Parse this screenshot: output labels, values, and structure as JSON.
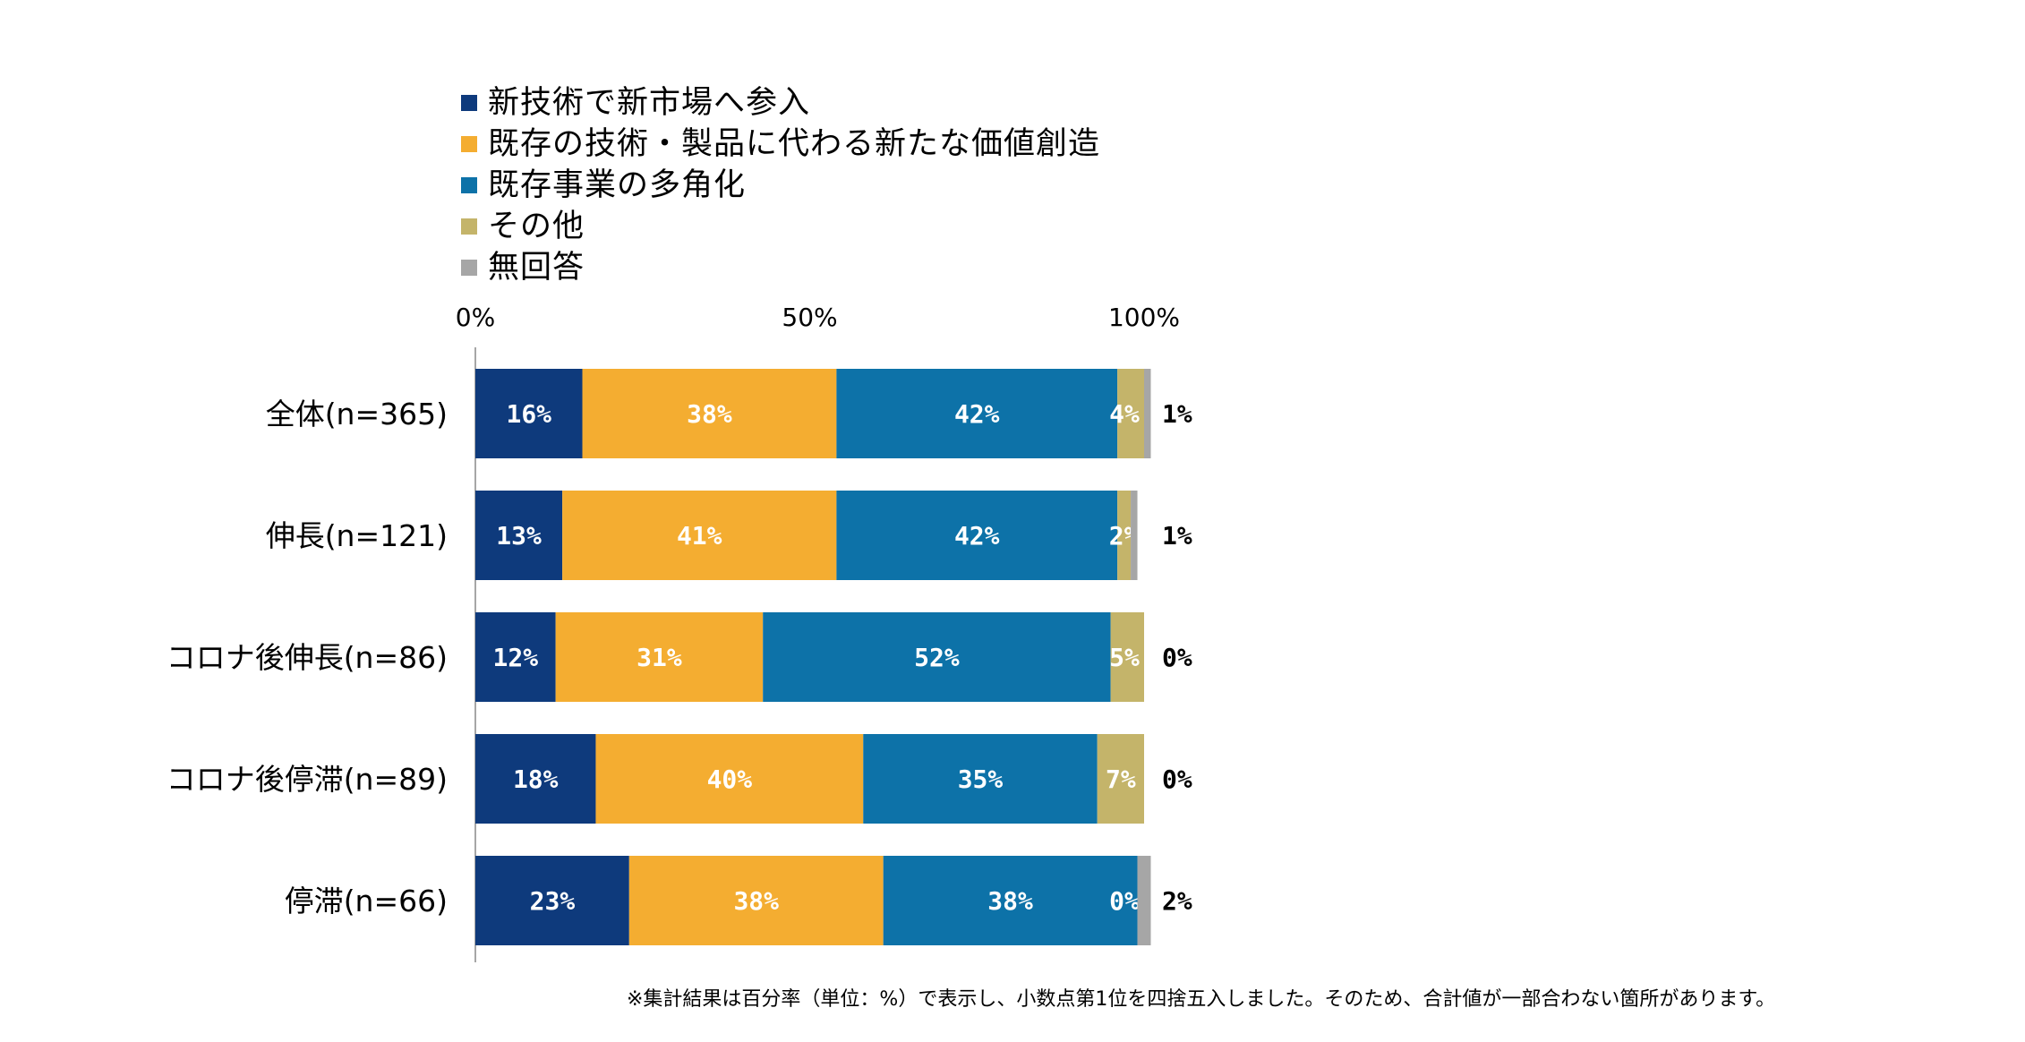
{
  "chart_data": {
    "type": "bar",
    "orientation": "horizontal",
    "stacked": true,
    "normalized": true,
    "categories": [
      "全体(n=365)",
      "伸長(n=121)",
      "コロナ後伸長(n=86)",
      "コロナ後停滞(n=89)",
      "停滞(n=66)"
    ],
    "series": [
      {
        "name": "新技術で新市場へ参入",
        "color": "#0e3a7c",
        "values": [
          16,
          13,
          12,
          18,
          23
        ],
        "labels": [
          "16%",
          "13%",
          "12%",
          "18%",
          "23%"
        ]
      },
      {
        "name": "既存の技術・製品に代わる新たな価値創造",
        "color": "#f4ad31",
        "values": [
          38,
          41,
          31,
          40,
          38
        ],
        "labels": [
          "38%",
          "41%",
          "31%",
          "40%",
          "38%"
        ]
      },
      {
        "name": "既存事業の多角化",
        "color": "#0d72a8",
        "values": [
          42,
          42,
          52,
          35,
          38
        ],
        "labels": [
          "42%",
          "42%",
          "52%",
          "35%",
          "38%"
        ]
      },
      {
        "name": "その他",
        "color": "#c4b46a",
        "values": [
          4,
          2,
          5,
          7,
          0
        ],
        "labels": [
          "4%",
          "2%",
          "5%",
          "7%",
          "0%"
        ]
      },
      {
        "name": "無回答",
        "color": "#a6a6a6",
        "values": [
          1,
          1,
          0,
          0,
          2
        ],
        "labels": [
          "1%",
          "1%",
          "0%",
          "0%",
          "2%"
        ]
      }
    ],
    "xticks": [
      "0%",
      "50%",
      "100%"
    ],
    "xlim": [
      0,
      100
    ],
    "legend_position": "top",
    "grid": false
  },
  "footnote": "※集計結果は百分率（単位：%）で表示し、小数点第1位を四捨五入しました。そのため、合計値が一部合わない箇所があります。"
}
